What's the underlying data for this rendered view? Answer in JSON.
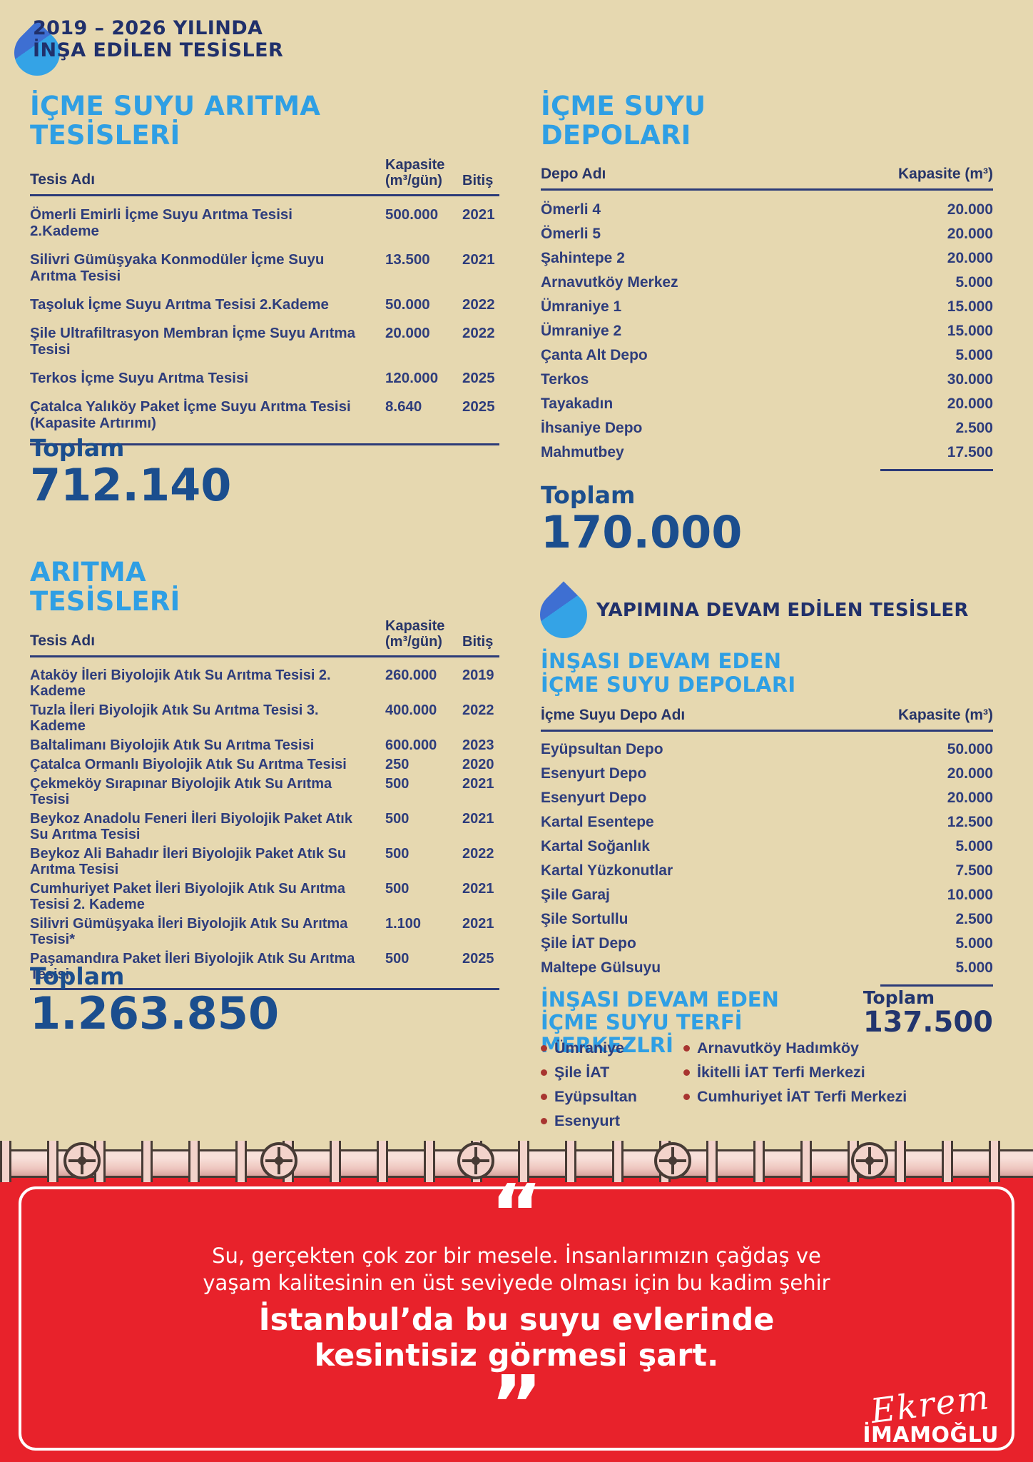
{
  "colors": {
    "paper": "#e6d8b0",
    "accent_blue": "#2f9fe4",
    "navy": "#20306b",
    "table_text": "#2e3d7c",
    "total_blue": "#1b4e8e",
    "red": "#e8222b",
    "bullet_red": "#a83530",
    "drop_light": "#34a3e6",
    "drop_dark": "#3e6fd2",
    "pipe_fill": "#f3d3cb",
    "pipe_line": "#473b35"
  },
  "header": {
    "line1": "2019 – 2026 YILINDA",
    "line2": "İNŞA EDİLEN TESİSLER"
  },
  "left": {
    "table1": {
      "title_line1": "İÇME SUYU ARITMA",
      "title_line2": "TESİSLERİ",
      "col_name": "Tesis Adı",
      "col_cap_line1": "Kapasite",
      "col_cap_line2": "(m³/gün)",
      "col_end": "Bitiş",
      "rows": [
        {
          "name": "Ömerli Emirli İçme Suyu Arıtma Tesisi 2.Kademe",
          "cap": "500.000",
          "end": "2021"
        },
        {
          "name": "Silivri Gümüşyaka Konmodüler İçme Suyu Arıtma Tesisi",
          "cap": "13.500",
          "end": "2021"
        },
        {
          "name": "Taşoluk İçme Suyu Arıtma Tesisi 2.Kademe",
          "cap": "50.000",
          "end": "2022"
        },
        {
          "name": "Şile Ultrafiltrasyon Membran İçme Suyu Arıtma Tesisi",
          "cap": "20.000",
          "end": "2022"
        },
        {
          "name": "Terkos İçme Suyu Arıtma Tesisi",
          "cap": "120.000",
          "end": "2025"
        },
        {
          "name": "Çatalca Yalıköy Paket İçme Suyu Arıtma Tesisi (Kapasite Artırımı)",
          "cap": "8.640",
          "end": "2025"
        }
      ],
      "total_label": "Toplam",
      "total_value": "712.140"
    },
    "table2": {
      "title_line1": "ARITMA",
      "title_line2": "TESİSLERİ",
      "col_name": "Tesis Adı",
      "col_cap_line1": "Kapasite",
      "col_cap_line2": "(m³/gün)",
      "col_end": "Bitiş",
      "rows": [
        {
          "name": "Ataköy İleri Biyolojik Atık Su Arıtma Tesisi 2. Kademe",
          "cap": "260.000",
          "end": "2019"
        },
        {
          "name": "Tuzla İleri Biyolojik Atık Su Arıtma Tesisi 3. Kademe",
          "cap": "400.000",
          "end": "2022"
        },
        {
          "name": "Baltalimanı Biyolojik Atık Su Arıtma Tesisi",
          "cap": "600.000",
          "end": "2023"
        },
        {
          "name": "Çatalca Ormanlı Biyolojik Atık Su Arıtma Tesisi",
          "cap": "250",
          "end": "2020"
        },
        {
          "name": "Çekmeköy Sırapınar Biyolojik Atık Su Arıtma Tesisi",
          "cap": "500",
          "end": "2021"
        },
        {
          "name": "Beykoz Anadolu Feneri İleri Biyolojik Paket Atık Su Arıtma Tesisi",
          "cap": "500",
          "end": "2021"
        },
        {
          "name": "Beykoz Ali Bahadır İleri Biyolojik Paket Atık Su Arıtma Tesisi",
          "cap": "500",
          "end": "2022"
        },
        {
          "name": "Cumhuriyet Paket İleri Biyolojik Atık Su Arıtma Tesisi 2. Kademe",
          "cap": "500",
          "end": "2021"
        },
        {
          "name": "Silivri Gümüşyaka İleri Biyolojik Atık Su Arıtma Tesisi*",
          "cap": "1.100",
          "end": "2021"
        },
        {
          "name": "Paşamandıra Paket İleri Biyolojik Atık Su Arıtma Tesisi",
          "cap": "500",
          "end": "2025"
        }
      ],
      "total_label": "Toplam",
      "total_value": "1.263.850"
    }
  },
  "right": {
    "depots": {
      "title_line1": "İÇME SUYU",
      "title_line2": "DEPOLARI",
      "col_name": "Depo Adı",
      "col_cap": "Kapasite (m³)",
      "rows": [
        {
          "name": "Ömerli 4",
          "cap": "20.000"
        },
        {
          "name": "Ömerli 5",
          "cap": "20.000"
        },
        {
          "name": "Şahintepe 2",
          "cap": "20.000"
        },
        {
          "name": "Arnavutköy Merkez",
          "cap": "5.000"
        },
        {
          "name": "Ümraniye 1",
          "cap": "15.000"
        },
        {
          "name": "Ümraniye 2",
          "cap": "15.000"
        },
        {
          "name": "Çanta Alt Depo",
          "cap": "5.000"
        },
        {
          "name": "Terkos",
          "cap": "30.000"
        },
        {
          "name": "Tayakadın",
          "cap": "20.000"
        },
        {
          "name": "İhsaniye Depo",
          "cap": "2.500"
        },
        {
          "name": "Mahmutbey",
          "cap": "17.500"
        }
      ],
      "total_label": "Toplam",
      "total_value": "170.000"
    },
    "section2_title": "YAPIMINA DEVAM EDİLEN TESİSLER",
    "ongoing_depots": {
      "title_line1": "İNŞASI DEVAM EDEN",
      "title_line2": "İÇME SUYU DEPOLARI",
      "col_name": "İçme Suyu Depo Adı",
      "col_cap": "Kapasite (m³)",
      "rows": [
        {
          "name": "Eyüpsultan Depo",
          "cap": "50.000"
        },
        {
          "name": "Esenyurt Depo",
          "cap": "20.000"
        },
        {
          "name": "Esenyurt Depo",
          "cap": "20.000"
        },
        {
          "name": "Kartal Esentepe",
          "cap": "12.500"
        },
        {
          "name": "Kartal Soğanlık",
          "cap": "5.000"
        },
        {
          "name": "Kartal Yüzkonutlar",
          "cap": "7.500"
        },
        {
          "name": "Şile Garaj",
          "cap": "10.000"
        },
        {
          "name": "Şile Sortullu",
          "cap": "2.500"
        },
        {
          "name": "Şile İAT Depo",
          "cap": "5.000"
        },
        {
          "name": "Maltepe Gülsuyu",
          "cap": "5.000"
        }
      ]
    },
    "terfi": {
      "title_line1": "İNŞASI DEVAM EDEN",
      "title_line2": "İÇME SUYU TERFİ MERKEZLRİ",
      "total_label": "Toplam",
      "total_value": "137.500",
      "col1": [
        "Ümraniye",
        "Şile İAT",
        "Eyüpsultan",
        "Esenyurt"
      ],
      "col2": [
        "Arnavutköy Hadımköy",
        "İkitelli İAT Terfi Merkezi",
        "Cumhuriyet İAT Terfi Merkezi"
      ]
    }
  },
  "quote": {
    "open_mark": "“",
    "line1": "Su, gerçekten çok zor bir mesele. İnsanlarımızın çağdaş ve",
    "line2": "yaşam kalitesinin en üst seviyede olması için bu kadim şehir",
    "bold1": "İstanbul’da bu suyu evlerinde",
    "bold2": "kesintisiz görmesi şart.",
    "close_mark": "”",
    "signature_script": "Ekrem",
    "signature_name": "İMAMOĞLU"
  }
}
